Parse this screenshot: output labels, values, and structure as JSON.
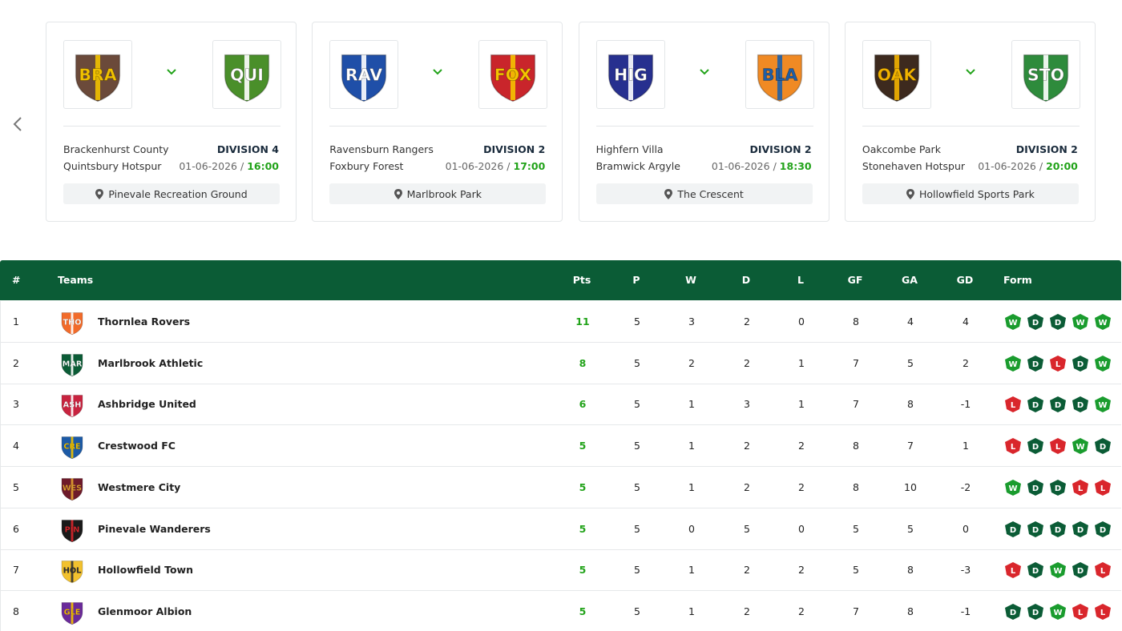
{
  "fixtures": {
    "date_time_separator": "/",
    "items": [
      {
        "home": {
          "abbr": "BRA",
          "name": "Brackenhurst County",
          "colors": [
            "#6b4a3a",
            "#f2c200",
            "#f2c200"
          ]
        },
        "away": {
          "abbr": "QUI",
          "name": "Quintsbury Hotspur",
          "colors": [
            "#4a8f2a",
            "#ffffff",
            "#ffffff"
          ]
        },
        "division": "DIVISION 4",
        "date": "01-06-2026",
        "time": "16:00",
        "venue": "Pinevale Recreation Ground"
      },
      {
        "home": {
          "abbr": "RAV",
          "name": "Ravensburn Rangers",
          "colors": [
            "#1f4fa8",
            "#ffffff",
            "#ffffff"
          ]
        },
        "away": {
          "abbr": "FOX",
          "name": "Foxbury Forest",
          "colors": [
            "#c9252b",
            "#f5c400",
            "#f5c400"
          ]
        },
        "division": "DIVISION 2",
        "date": "01-06-2026",
        "time": "17:00",
        "venue": "Marlbrook Park"
      },
      {
        "home": {
          "abbr": "HIG",
          "name": "Highfern Villa",
          "colors": [
            "#27308f",
            "#ffffff",
            "#ffffff"
          ]
        },
        "away": {
          "abbr": "BLA",
          "name": "Bramwick Argyle",
          "colors": [
            "#f08a24",
            "#1e5fa8",
            "#1e5fa8"
          ]
        },
        "division": "DIVISION 2",
        "date": "01-06-2026",
        "time": "18:30",
        "venue": "The Crescent"
      },
      {
        "home": {
          "abbr": "OAK",
          "name": "Oakcombe Park",
          "colors": [
            "#3d2a1e",
            "#f2b300",
            "#f2b300"
          ]
        },
        "away": {
          "abbr": "STO",
          "name": "Stonehaven Hotspur",
          "colors": [
            "#2e8b3c",
            "#ffffff",
            "#ffffff"
          ]
        },
        "division": "DIVISION 2",
        "date": "01-06-2026",
        "time": "20:00",
        "venue": "Hollowfield Sports Park"
      }
    ]
  },
  "table": {
    "headers": [
      "#",
      "Teams",
      "Pts",
      "P",
      "W",
      "D",
      "L",
      "GF",
      "GA",
      "GD",
      "Form"
    ],
    "form_colors": {
      "W": "#1a9c2e",
      "D": "#0b5c36",
      "L": "#d9262c"
    },
    "rows": [
      {
        "pos": 1,
        "abbr": "THO",
        "colors": [
          "#f26b2a",
          "#ffffff",
          "#ffffff"
        ],
        "team": "Thornlea Rovers",
        "pts": 11,
        "p": 5,
        "w": 3,
        "d": 2,
        "l": 0,
        "gf": 8,
        "ga": 4,
        "gd": 4,
        "form": [
          "W",
          "D",
          "D",
          "W",
          "W"
        ]
      },
      {
        "pos": 2,
        "abbr": "MAR",
        "colors": [
          "#0b5c36",
          "#ffffff",
          "#ffffff"
        ],
        "team": "Marlbrook Athletic",
        "pts": 8,
        "p": 5,
        "w": 2,
        "d": 2,
        "l": 1,
        "gf": 7,
        "ga": 5,
        "gd": 2,
        "form": [
          "W",
          "D",
          "L",
          "D",
          "W"
        ]
      },
      {
        "pos": 3,
        "abbr": "ASH",
        "colors": [
          "#c8233f",
          "#ffffff",
          "#ffffff"
        ],
        "team": "Ashbridge United",
        "pts": 6,
        "p": 5,
        "w": 1,
        "d": 3,
        "l": 1,
        "gf": 7,
        "ga": 8,
        "gd": -1,
        "form": [
          "L",
          "D",
          "D",
          "D",
          "W"
        ]
      },
      {
        "pos": 4,
        "abbr": "CRE",
        "colors": [
          "#1c5aa6",
          "#f2c200",
          "#f2c200"
        ],
        "team": "Crestwood FC",
        "pts": 5,
        "p": 5,
        "w": 1,
        "d": 2,
        "l": 2,
        "gf": 8,
        "ga": 7,
        "gd": 1,
        "form": [
          "L",
          "D",
          "L",
          "W",
          "D"
        ]
      },
      {
        "pos": 5,
        "abbr": "WES",
        "colors": [
          "#6e1a2a",
          "#e0a030",
          "#e0a030"
        ],
        "team": "Westmere City",
        "pts": 5,
        "p": 5,
        "w": 1,
        "d": 2,
        "l": 2,
        "gf": 8,
        "ga": 10,
        "gd": -2,
        "form": [
          "W",
          "D",
          "D",
          "L",
          "L"
        ]
      },
      {
        "pos": 6,
        "abbr": "PIN",
        "colors": [
          "#1a1a1a",
          "#d9262c",
          "#d9262c"
        ],
        "team": "Pinevale Wanderers",
        "pts": 5,
        "p": 5,
        "w": 0,
        "d": 5,
        "l": 0,
        "gf": 5,
        "ga": 5,
        "gd": 0,
        "form": [
          "D",
          "D",
          "D",
          "D",
          "D"
        ]
      },
      {
        "pos": 7,
        "abbr": "HOL",
        "colors": [
          "#f2c12e",
          "#333333",
          "#333333"
        ],
        "team": "Hollowfield Town",
        "pts": 5,
        "p": 5,
        "w": 1,
        "d": 2,
        "l": 2,
        "gf": 5,
        "ga": 8,
        "gd": -3,
        "form": [
          "L",
          "D",
          "W",
          "D",
          "L"
        ]
      },
      {
        "pos": 8,
        "abbr": "GLE",
        "colors": [
          "#6a2a9a",
          "#f2c200",
          "#f2c200"
        ],
        "team": "Glenmoor Albion",
        "pts": 5,
        "p": 5,
        "w": 1,
        "d": 2,
        "l": 2,
        "gf": 7,
        "ga": 8,
        "gd": -1,
        "form": [
          "D",
          "D",
          "W",
          "L",
          "L"
        ]
      }
    ]
  }
}
